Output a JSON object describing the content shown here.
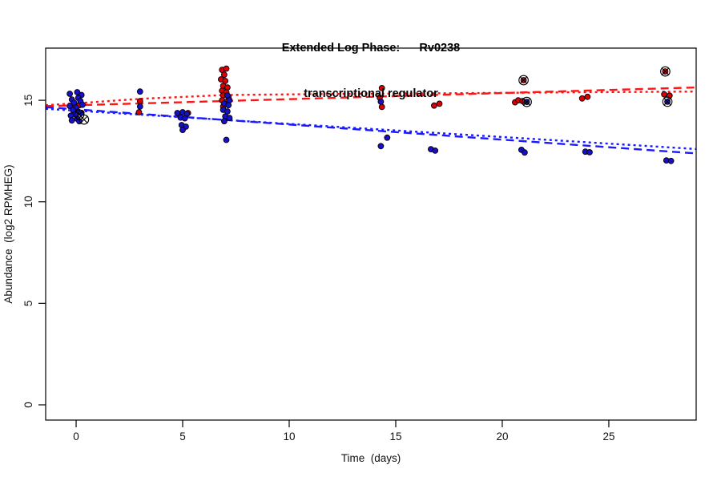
{
  "title": {
    "line1": "Extended Log Phase:      Rv0238",
    "line2": "transcriptional regulator"
  },
  "chart_data": {
    "type": "scatter",
    "title": "Extended Log Phase:      Rv0238 / transcriptional regulator",
    "xlabel": "Time  (days)",
    "ylabel": "Abundance  (log2 RPMHEG)",
    "xlim": [
      -1.43,
      29.1
    ],
    "ylim": [
      -0.75,
      17.57
    ],
    "x_ticks": [
      0,
      5,
      10,
      15,
      20,
      25
    ],
    "y_ticks": [
      0,
      5,
      10,
      15
    ],
    "grid": false,
    "legend_position": "none",
    "colors": {
      "red_points": "#dc0000",
      "blue_points": "#1212cc",
      "red_line": "#ff1414",
      "blue_line": "#1a1aff",
      "flag_marker": "#000000",
      "axis": "#000000"
    },
    "series": [
      {
        "name": "red",
        "color": "#dc0000",
        "points": [
          [
            -0.1,
            14.84
          ],
          [
            0.15,
            14.76
          ],
          [
            3.0,
            14.96
          ],
          [
            2.95,
            14.41
          ],
          [
            5.25,
            14.37
          ],
          [
            6.85,
            16.5
          ],
          [
            7.05,
            16.56
          ],
          [
            6.95,
            16.26
          ],
          [
            6.8,
            16.03
          ],
          [
            7.0,
            15.95
          ],
          [
            6.9,
            15.71
          ],
          [
            7.1,
            15.63
          ],
          [
            6.85,
            15.47
          ],
          [
            7.05,
            15.39
          ],
          [
            6.9,
            15.24
          ],
          [
            7.15,
            15.16
          ],
          [
            6.85,
            15.0
          ],
          [
            7.05,
            14.92
          ],
          [
            6.9,
            14.69
          ],
          [
            14.35,
            15.6
          ],
          [
            14.25,
            15.13
          ],
          [
            14.35,
            14.67
          ],
          [
            16.8,
            14.74
          ],
          [
            17.05,
            14.83
          ],
          [
            20.6,
            14.9
          ],
          [
            20.75,
            15.0
          ],
          [
            20.95,
            14.96
          ],
          [
            21.0,
            15.99
          ],
          [
            23.75,
            15.09
          ],
          [
            24.0,
            15.17
          ],
          [
            27.6,
            15.29
          ],
          [
            27.85,
            15.23
          ],
          [
            27.65,
            16.42
          ]
        ]
      },
      {
        "name": "blue",
        "color": "#1212cc",
        "points": [
          [
            -0.3,
            15.32
          ],
          [
            0.05,
            15.4
          ],
          [
            0.25,
            15.26
          ],
          [
            -0.2,
            15.04
          ],
          [
            0.1,
            15.12
          ],
          [
            -0.1,
            14.88
          ],
          [
            0.2,
            14.96
          ],
          [
            -0.3,
            14.72
          ],
          [
            0.0,
            14.64
          ],
          [
            0.3,
            14.78
          ],
          [
            -0.15,
            14.52
          ],
          [
            0.1,
            14.44
          ],
          [
            -0.05,
            14.3
          ],
          [
            -0.25,
            14.24
          ],
          [
            0.25,
            14.38
          ],
          [
            0.05,
            14.09
          ],
          [
            -0.2,
            14.01
          ],
          [
            0.15,
            13.97
          ],
          [
            3.0,
            15.43
          ],
          [
            3.0,
            14.69
          ],
          [
            4.75,
            14.37
          ],
          [
            5.0,
            14.41
          ],
          [
            5.2,
            14.33
          ],
          [
            4.9,
            14.15
          ],
          [
            5.1,
            14.11
          ],
          [
            4.95,
            13.78
          ],
          [
            5.15,
            13.7
          ],
          [
            5.0,
            13.54
          ],
          [
            7.1,
            15.24
          ],
          [
            7.2,
            15.0
          ],
          [
            6.95,
            14.84
          ],
          [
            7.15,
            14.76
          ],
          [
            6.9,
            14.53
          ],
          [
            7.1,
            14.45
          ],
          [
            7.0,
            14.21
          ],
          [
            7.2,
            14.13
          ],
          [
            6.95,
            13.97
          ],
          [
            7.05,
            13.05
          ],
          [
            14.3,
            14.93
          ],
          [
            14.6,
            13.16
          ],
          [
            14.3,
            12.74
          ],
          [
            16.65,
            12.59
          ],
          [
            16.85,
            12.52
          ],
          [
            20.9,
            12.56
          ],
          [
            21.05,
            12.43
          ],
          [
            21.15,
            14.92
          ],
          [
            23.9,
            12.47
          ],
          [
            24.1,
            12.44
          ],
          [
            27.7,
            12.04
          ],
          [
            27.92,
            12.01
          ],
          [
            27.75,
            14.93
          ]
        ]
      }
    ],
    "flagged_points": {
      "marker": "circle-x",
      "color": "#000000",
      "points": [
        [
          0.15,
          14.29
        ],
        [
          0.37,
          14.05
        ],
        [
          21.0,
          15.99
        ],
        [
          21.15,
          14.92
        ],
        [
          27.65,
          16.42
        ],
        [
          27.75,
          14.93
        ]
      ]
    },
    "trend_lines": [
      {
        "name": "red-dashed",
        "color": "#ff1414",
        "style": "dashed",
        "points": [
          [
            -1.43,
            14.71
          ],
          [
            29.1,
            15.63
          ]
        ]
      },
      {
        "name": "red-dotted",
        "color": "#ff1414",
        "style": "dotted",
        "points": [
          [
            -1.43,
            14.76
          ],
          [
            0,
            14.85
          ],
          [
            3,
            15.07
          ],
          [
            7,
            15.26
          ],
          [
            12,
            15.31
          ],
          [
            18,
            15.35
          ],
          [
            24,
            15.4
          ],
          [
            29.1,
            15.43
          ]
        ]
      },
      {
        "name": "blue-dashed",
        "color": "#1a1aff",
        "style": "dashed",
        "points": [
          [
            -1.43,
            14.66
          ],
          [
            29.1,
            12.38
          ]
        ]
      },
      {
        "name": "blue-dotted",
        "color": "#1a1aff",
        "style": "dotted",
        "points": [
          [
            -1.43,
            14.58
          ],
          [
            29.1,
            12.6
          ]
        ]
      }
    ]
  }
}
